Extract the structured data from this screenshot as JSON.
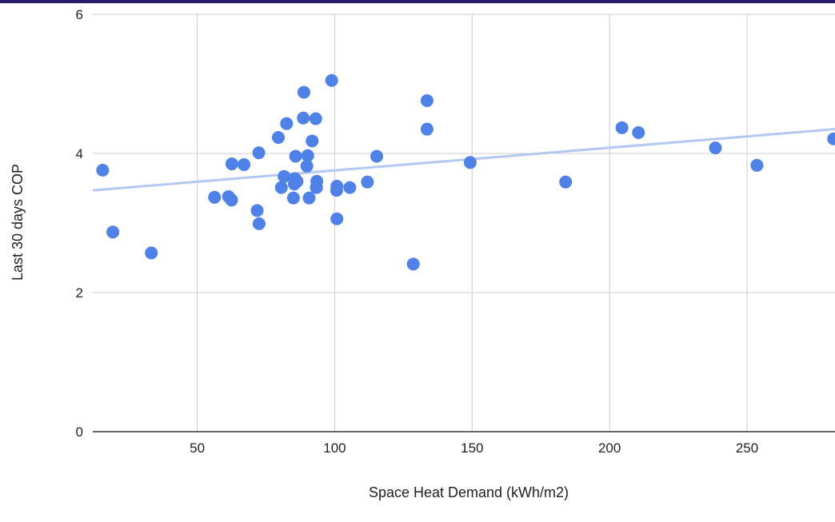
{
  "colors": {
    "top_bar": "#2b1b6e",
    "points": "#4f82e8",
    "trendline": "#b3c8f2",
    "grid": "#cccccc",
    "baseline": "#333333"
  },
  "chart_data": {
    "type": "scatter",
    "title": "",
    "xlabel": "Space Heat Demand (kWh/m2)",
    "ylabel": "Last 30 days COP",
    "xlim": [
      12,
      282
    ],
    "ylim": [
      0,
      6
    ],
    "xticks": [
      50,
      100,
      150,
      200,
      250
    ],
    "yticks": [
      0,
      2,
      4,
      6
    ],
    "x_tick_labels": [
      "50",
      "100",
      "150",
      "200",
      "250"
    ],
    "y_tick_labels": [
      "0",
      "2",
      "4",
      "6"
    ],
    "grid": true,
    "legend": "none",
    "trendline": {
      "type": "linear",
      "x": [
        12,
        282
      ],
      "y": [
        3.47,
        4.35
      ]
    },
    "series": [
      {
        "x": [
          15.6,
          19.3,
          33.3,
          56.3,
          61.4,
          62.6,
          62.5,
          67,
          71.8,
          72.5,
          72.4,
          79.5,
          80.6,
          81.6,
          82.5,
          85,
          85.5,
          85.3,
          85.8,
          86.3,
          88.6,
          88.8,
          89.9,
          90.2,
          90.7,
          91.8,
          93.1,
          93.5,
          93.4,
          93.3,
          98.9,
          100.8,
          100.8,
          100.7,
          105.5,
          111.9,
          115.3,
          128.6,
          133.6,
          133.6,
          149.3,
          184,
          204.5,
          210.5,
          238.5,
          253.6,
          281.5
        ],
        "y": [
          3.76,
          2.87,
          2.57,
          3.37,
          3.38,
          3.85,
          3.33,
          3.84,
          3.18,
          2.99,
          4.01,
          4.23,
          3.51,
          3.67,
          4.43,
          3.36,
          3.64,
          3.56,
          3.96,
          3.6,
          4.51,
          4.88,
          3.82,
          3.97,
          3.36,
          4.18,
          4.5,
          3.6,
          3.51,
          3.51,
          5.05,
          3.06,
          3.53,
          3.47,
          3.51,
          3.59,
          3.96,
          2.41,
          4.76,
          4.35,
          3.87,
          3.59,
          4.37,
          4.3,
          4.08,
          3.83,
          4.21
        ]
      }
    ]
  }
}
